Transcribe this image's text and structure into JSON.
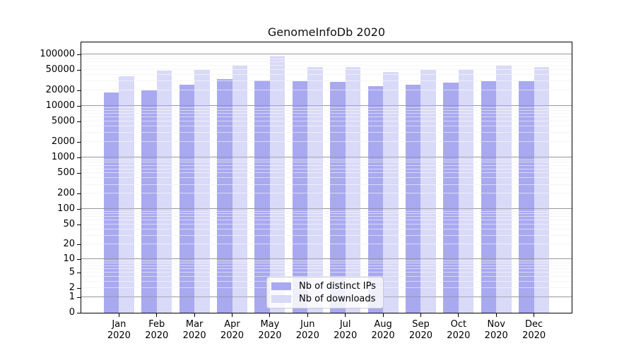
{
  "chart_data": {
    "type": "bar",
    "title": "GenomeInfoDb 2020",
    "categories": [
      "Jan",
      "Feb",
      "Mar",
      "Apr",
      "May",
      "Jun",
      "Jul",
      "Aug",
      "Sep",
      "Oct",
      "Nov",
      "Dec"
    ],
    "year": "2020",
    "series": [
      {
        "name": "Nb of distinct IPs",
        "color": "#a9a9ef",
        "values": [
          18000,
          20000,
          26000,
          33500,
          31500,
          30500,
          29500,
          24500,
          25500,
          28000,
          30500,
          30000
        ]
      },
      {
        "name": "Nb of downloads",
        "color": "#d9d9f8",
        "values": [
          38000,
          49000,
          50000,
          61000,
          95000,
          56000,
          56000,
          45000,
          50000,
          52000,
          61000,
          56000
        ]
      }
    ],
    "yscale": "log1p",
    "ylim": [
      0,
      170000
    ],
    "yticks": [
      100000,
      50000,
      20000,
      10000,
      5000,
      2000,
      1000,
      500,
      200,
      100,
      50,
      20,
      10,
      5,
      2,
      1,
      0
    ],
    "grid": {
      "on": true,
      "major_color": "#b3b3b3",
      "minor_color": "#e9e9e9"
    },
    "legend_position": "bottom-center",
    "axis_color": "#000000",
    "background_color": "#ffffff"
  }
}
